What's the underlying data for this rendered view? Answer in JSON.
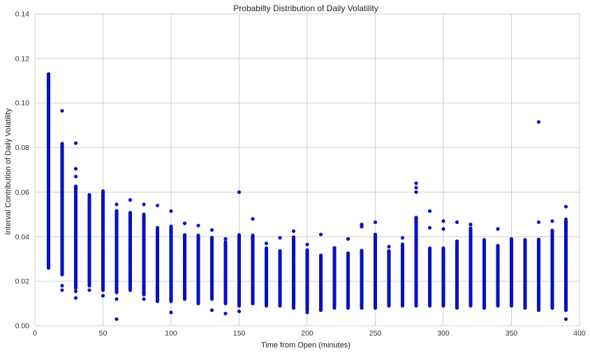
{
  "chart_data": {
    "type": "scatter",
    "title": "Probabilty Distribution of Daily Volatility",
    "xlabel": "Time from Open (minutes)",
    "ylabel": "Interval Contribution of Daily Volatility",
    "xlim": [
      0,
      400
    ],
    "ylim": [
      0.0,
      0.14
    ],
    "xticks": [
      0,
      50,
      100,
      150,
      200,
      250,
      300,
      350,
      400
    ],
    "yticks": [
      0.0,
      0.02,
      0.04,
      0.06,
      0.08,
      0.1,
      0.12,
      0.14
    ],
    "xtick_labels": [
      "0",
      "50",
      "100",
      "150",
      "200",
      "250",
      "300",
      "350",
      "400"
    ],
    "ytick_labels": [
      "0.00",
      "0.02",
      "0.04",
      "0.06",
      "0.08",
      "0.10",
      "0.12",
      "0.14"
    ],
    "grid": true,
    "legend": "none",
    "point_color": "#0a10c0",
    "columns": [
      {
        "x": 10,
        "range": [
          0.026,
          0.113
        ],
        "extra": [
          0.0262,
          0.0268,
          0.035,
          0.108,
          0.11,
          0.113
        ]
      },
      {
        "x": 20,
        "range": [
          0.023,
          0.082
        ],
        "extra": [
          0.016,
          0.018,
          0.0965
        ]
      },
      {
        "x": 30,
        "range": [
          0.017,
          0.063
        ],
        "extra": [
          0.0125,
          0.0155,
          0.067,
          0.0705,
          0.082
        ]
      },
      {
        "x": 40,
        "range": [
          0.018,
          0.059
        ],
        "extra": [
          0.016
        ]
      },
      {
        "x": 50,
        "range": [
          0.016,
          0.06
        ],
        "extra": [
          0.0135,
          0.0605
        ]
      },
      {
        "x": 60,
        "range": [
          0.015,
          0.052
        ],
        "extra": [
          0.003,
          0.012,
          0.0545
        ]
      },
      {
        "x": 70,
        "range": [
          0.016,
          0.051
        ],
        "extra": [
          0.0565
        ]
      },
      {
        "x": 80,
        "range": [
          0.014,
          0.05
        ],
        "extra": [
          0.012,
          0.0545
        ]
      },
      {
        "x": 90,
        "range": [
          0.011,
          0.044
        ],
        "extra": [
          0.054
        ]
      },
      {
        "x": 100,
        "range": [
          0.011,
          0.045
        ],
        "extra": [
          0.006,
          0.0515
        ]
      },
      {
        "x": 110,
        "range": [
          0.012,
          0.041
        ],
        "extra": [
          0.046
        ]
      },
      {
        "x": 120,
        "range": [
          0.01,
          0.041
        ],
        "extra": [
          0.045
        ]
      },
      {
        "x": 130,
        "range": [
          0.012,
          0.04
        ],
        "extra": [
          0.007,
          0.043
        ]
      },
      {
        "x": 140,
        "range": [
          0.01,
          0.038
        ],
        "extra": [
          0.0055,
          0.039
        ]
      },
      {
        "x": 150,
        "range": [
          0.009,
          0.041
        ],
        "extra": [
          0.0065,
          0.06
        ]
      },
      {
        "x": 160,
        "range": [
          0.01,
          0.041
        ],
        "extra": [
          0.048
        ]
      },
      {
        "x": 170,
        "range": [
          0.009,
          0.035
        ],
        "extra": [
          0.037
        ]
      },
      {
        "x": 180,
        "range": [
          0.009,
          0.034
        ],
        "extra": [
          0.0395
        ]
      },
      {
        "x": 190,
        "range": [
          0.008,
          0.04
        ],
        "extra": [
          0.0425
        ]
      },
      {
        "x": 200,
        "range": [
          0.007,
          0.034
        ],
        "extra": [
          0.006,
          0.0365
        ]
      },
      {
        "x": 210,
        "range": [
          0.007,
          0.032
        ],
        "extra": [
          0.041
        ]
      },
      {
        "x": 220,
        "range": [
          0.008,
          0.035
        ],
        "extra": []
      },
      {
        "x": 230,
        "range": [
          0.008,
          0.033
        ],
        "extra": [
          0.039
        ]
      },
      {
        "x": 240,
        "range": [
          0.008,
          0.034
        ],
        "extra": [
          0.0445,
          0.0455
        ]
      },
      {
        "x": 250,
        "range": [
          0.008,
          0.041
        ],
        "extra": [
          0.0465
        ]
      },
      {
        "x": 260,
        "range": [
          0.009,
          0.034
        ],
        "extra": [
          0.0355
        ]
      },
      {
        "x": 270,
        "range": [
          0.009,
          0.037
        ],
        "extra": [
          0.0395
        ]
      },
      {
        "x": 280,
        "range": [
          0.009,
          0.049
        ],
        "extra": [
          0.06,
          0.062,
          0.064
        ]
      },
      {
        "x": 290,
        "range": [
          0.009,
          0.035
        ],
        "extra": [
          0.044,
          0.0515
        ]
      },
      {
        "x": 300,
        "range": [
          0.009,
          0.035
        ],
        "extra": [
          0.0435,
          0.047
        ]
      },
      {
        "x": 310,
        "range": [
          0.008,
          0.038
        ],
        "extra": [
          0.0465
        ]
      },
      {
        "x": 320,
        "range": [
          0.009,
          0.044
        ],
        "extra": [
          0.0455
        ]
      },
      {
        "x": 330,
        "range": [
          0.008,
          0.039
        ],
        "extra": []
      },
      {
        "x": 340,
        "range": [
          0.009,
          0.036
        ],
        "extra": [
          0.0435
        ]
      },
      {
        "x": 350,
        "range": [
          0.009,
          0.039
        ],
        "extra": []
      },
      {
        "x": 360,
        "range": [
          0.008,
          0.039
        ],
        "extra": []
      },
      {
        "x": 370,
        "range": [
          0.007,
          0.039
        ],
        "extra": [
          0.0465,
          0.0915
        ]
      },
      {
        "x": 380,
        "range": [
          0.008,
          0.043
        ],
        "extra": [
          0.047
        ]
      },
      {
        "x": 390,
        "range": [
          0.007,
          0.048
        ],
        "extra": [
          0.003,
          0.0535
        ]
      }
    ]
  }
}
